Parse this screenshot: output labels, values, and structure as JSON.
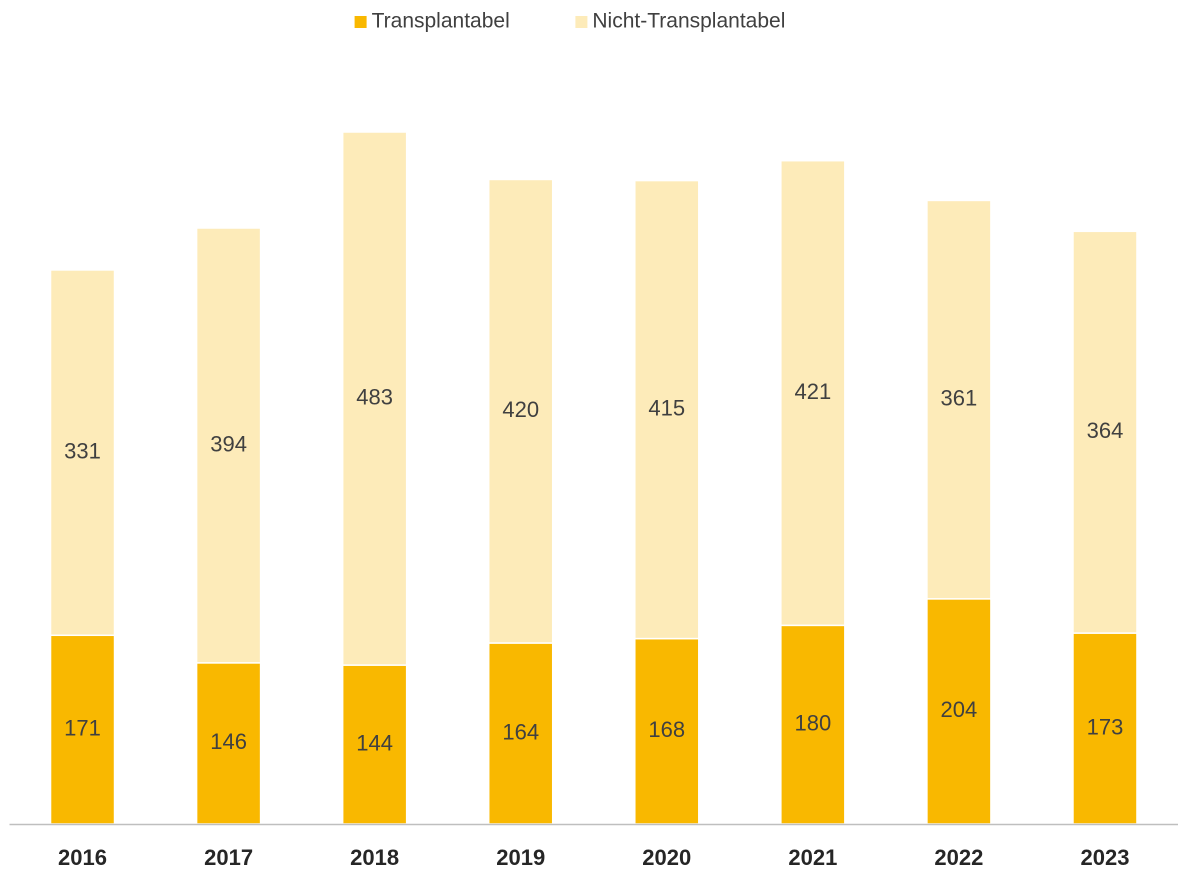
{
  "chart_data": {
    "type": "stacked_bar",
    "categories": [
      "2016",
      "2017",
      "2018",
      "2019",
      "2020",
      "2021",
      "2022",
      "2023"
    ],
    "series": [
      {
        "name": "Transplantabel",
        "color": "#f9b800",
        "values": [
          171,
          146,
          144,
          164,
          168,
          180,
          204,
          173
        ]
      },
      {
        "name": "Nicht-Transplantabel",
        "color": "#fdebb9",
        "values": [
          331,
          394,
          483,
          420,
          415,
          421,
          361,
          364
        ]
      }
    ],
    "legend": "top"
  }
}
